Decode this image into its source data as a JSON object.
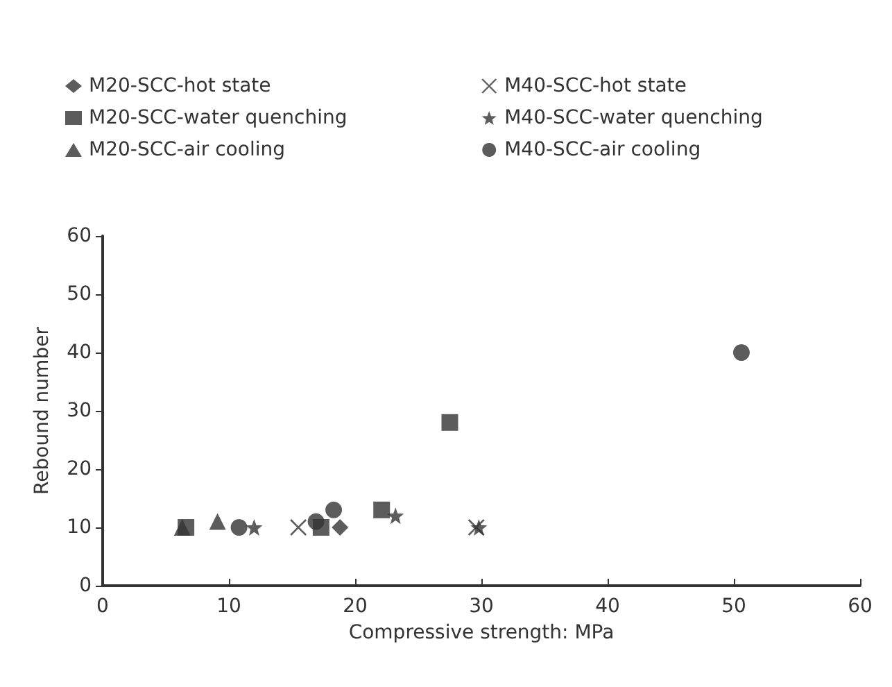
{
  "chart_data": {
    "type": "scatter",
    "xlabel": "Compressive strength: MPa",
    "ylabel": "Rebound number",
    "xlim": [
      0,
      60
    ],
    "xticks": [
      0,
      10,
      20,
      30,
      40,
      50,
      60
    ],
    "ylim": [
      0,
      60
    ],
    "yticks": [
      0,
      10,
      20,
      30,
      40,
      50,
      60
    ],
    "grid": false,
    "legend": "top left",
    "series": [
      {
        "name": "M20-SCC-hot state",
        "color": "#333333",
        "marker": "diamond",
        "x": [
          18.8
        ],
        "values": [
          10
        ]
      },
      {
        "name": "M20-SCC-water quenching",
        "color": "#333333",
        "marker": "square",
        "x": [
          6.6,
          17.3,
          22.1,
          27.5
        ],
        "values": [
          10,
          10,
          13,
          28
        ]
      },
      {
        "name": "M20-SCC-air cooling",
        "color": "#333333",
        "marker": "triangle",
        "x": [
          6.3,
          9.1
        ],
        "values": [
          10,
          11
        ]
      },
      {
        "name": "M40-SCC-hot state",
        "color": "#333333",
        "marker": "cross",
        "x": [
          15.5,
          29.6
        ],
        "values": [
          10,
          10
        ]
      },
      {
        "name": "M40-SCC-water quenching",
        "color": "#333333",
        "marker": "star",
        "x": [
          12,
          23.2,
          29.8
        ],
        "values": [
          10,
          12,
          10
        ]
      },
      {
        "name": "M40-SCC-air cooling",
        "color": "#333333",
        "marker": "circle",
        "x": [
          10.8,
          16.9,
          18.3,
          50.6
        ],
        "values": [
          10,
          11,
          13,
          40
        ]
      }
    ]
  }
}
